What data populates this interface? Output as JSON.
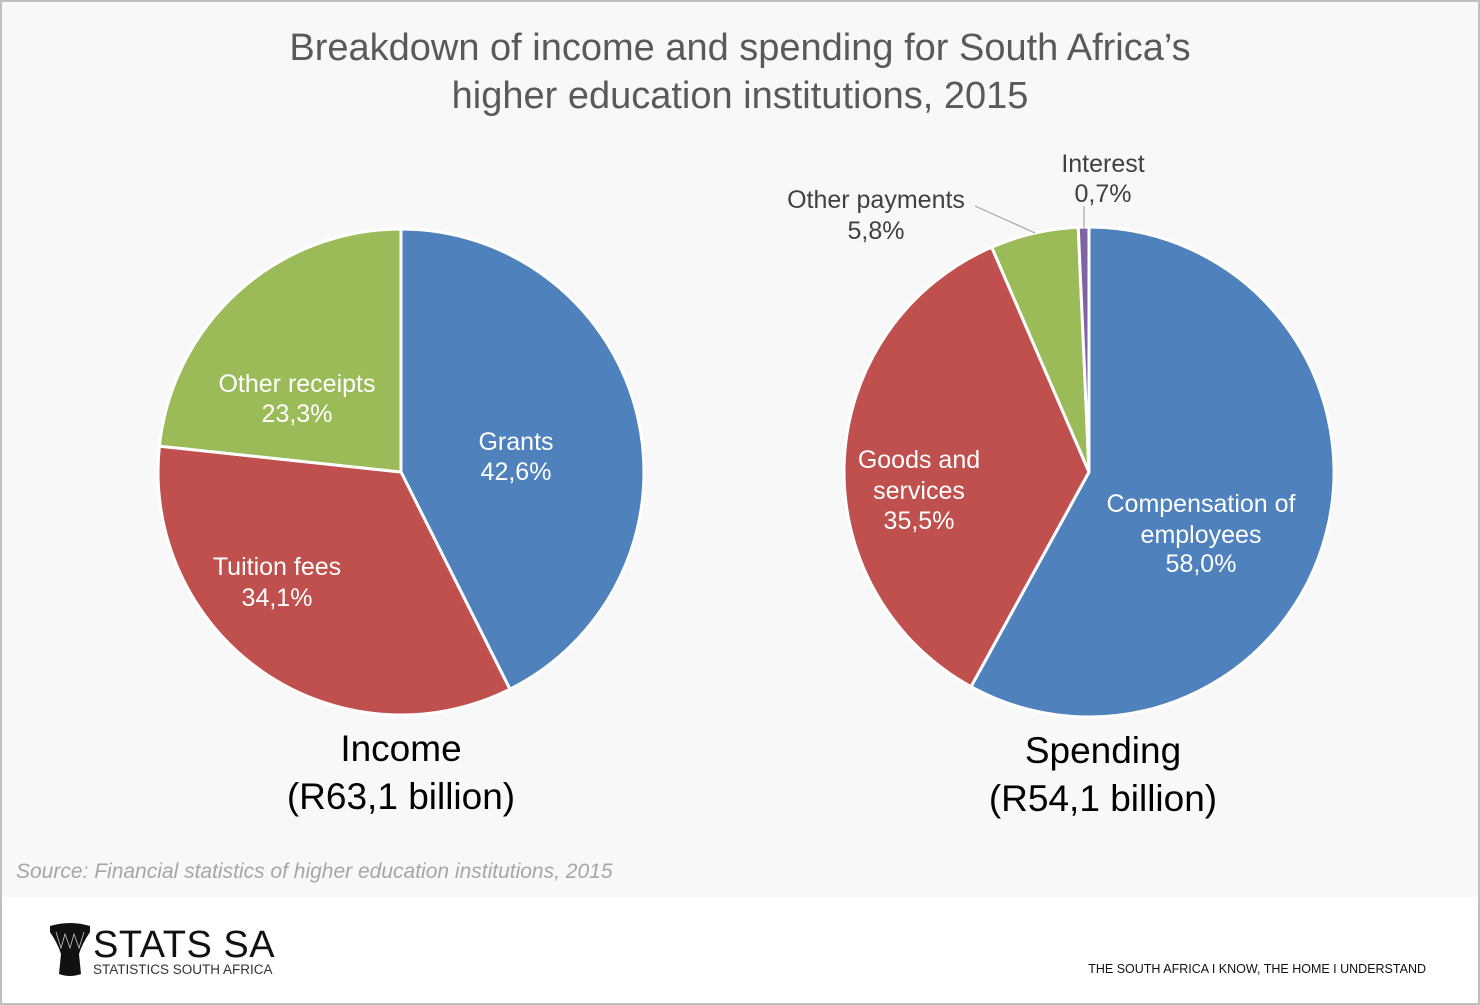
{
  "title_line1": "Breakdown of income and spending for South Africa’s",
  "title_line2": "higher education institutions, 2015",
  "source": "Source: Financial statistics of higher education institutions, 2015",
  "logo": {
    "name": "STATS SA",
    "subtitle": "STATISTICS SOUTH AFRICA"
  },
  "tagline": "THE SOUTH AFRICA I KNOW, THE HOME I UNDERSTAND",
  "colors": {
    "blue": "#4f81bd",
    "red": "#c0504d",
    "green": "#9bbb59",
    "purple": "#8064a2"
  },
  "chart_data": [
    {
      "type": "pie",
      "caption_line1": "Income",
      "caption_line2": "(R63,1 billion)",
      "slices": [
        {
          "label": "Grants",
          "value": 42.6,
          "value_label": "42,6%",
          "color": "#4f81bd"
        },
        {
          "label": "Tuition fees",
          "value": 34.1,
          "value_label": "34,1%",
          "color": "#c0504d"
        },
        {
          "label": "Other receipts",
          "value": 23.3,
          "value_label": "23,3%",
          "color": "#9bbb59"
        }
      ]
    },
    {
      "type": "pie",
      "caption_line1": "Spending",
      "caption_line2": "(R54,1 billion)",
      "slices": [
        {
          "label": "Compensation of employees",
          "label_line1": "Compensation of",
          "label_line2": "employees",
          "value": 58.0,
          "value_label": "58,0%",
          "color": "#4f81bd"
        },
        {
          "label": "Goods and services",
          "label_line1": "Goods and",
          "label_line2": "services",
          "value": 35.5,
          "value_label": "35,5%",
          "color": "#c0504d"
        },
        {
          "label": "Other payments",
          "value": 5.8,
          "value_label": "5,8%",
          "color": "#9bbb59"
        },
        {
          "label": "Interest",
          "value": 0.7,
          "value_label": "0,7%",
          "color": "#8064a2"
        }
      ]
    }
  ]
}
